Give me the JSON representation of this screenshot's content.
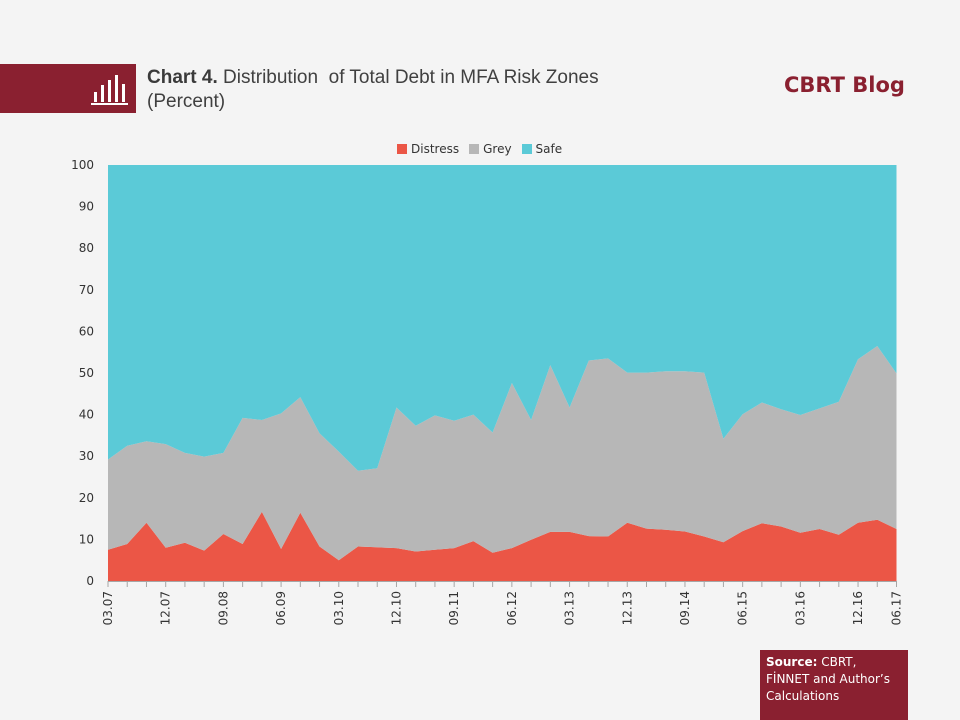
{
  "header": {
    "chart_number": "Chart 4.",
    "title": "Distribution  of Total Debt in MFA Risk Zones",
    "subtitle": "(Percent)",
    "brand": "CBRT Blog",
    "icon": "bar-chart-icon"
  },
  "source": {
    "label": "Source:",
    "text": " CBRT, FİNNET and Author’s Calculations"
  },
  "colors": {
    "brand": "#8a2030",
    "distress": "#eb5646",
    "grey": "#b7b7b7",
    "safe": "#5bcad7"
  },
  "chart_data": {
    "type": "area",
    "stacked": true,
    "title": "Distribution of Total Debt in MFA Risk Zones (Percent)",
    "xlabel": "",
    "ylabel": "",
    "ylim": [
      0,
      100
    ],
    "yticks": [
      "0",
      "10",
      "20",
      "30",
      "40",
      "50",
      "60",
      "70",
      "80",
      "90",
      "100"
    ],
    "xtick_labels": [
      "03.07",
      "12.07",
      "09.08",
      "06.09",
      "03.10",
      "12.10",
      "09.11",
      "06.12",
      "03.13",
      "12.13",
      "09.14",
      "06.15",
      "03.16",
      "12.16",
      "06.17"
    ],
    "xtick_label_indices": [
      0,
      3,
      6,
      9,
      12,
      15,
      18,
      21,
      24,
      27,
      30,
      33,
      36,
      39,
      41
    ],
    "legend": {
      "position": "top",
      "entries": [
        "Distress",
        "Grey",
        "Safe"
      ]
    },
    "x_count": 42,
    "series": [
      {
        "name": "Distress",
        "values": [
          7.5,
          8.9,
          14.0,
          8.0,
          9.2,
          7.3,
          11.3,
          8.9,
          16.6,
          7.7,
          16.4,
          8.3,
          5.0,
          8.3,
          8.1,
          7.9,
          7.1,
          7.5,
          7.9,
          9.6,
          6.8,
          7.9,
          9.9,
          11.8,
          11.8,
          10.8,
          10.7,
          14.0,
          12.6,
          12.3,
          11.9,
          10.7,
          9.3,
          12.0,
          13.9,
          13.1,
          11.6,
          12.5,
          11.1,
          14.0,
          14.7,
          12.5
        ]
      },
      {
        "name": "Grey",
        "values": [
          21.7,
          23.6,
          19.6,
          24.9,
          21.6,
          22.6,
          19.5,
          30.3,
          22.1,
          32.6,
          27.8,
          27.2,
          26.1,
          18.2,
          19.0,
          33.8,
          30.2,
          32.3,
          30.6,
          30.4,
          28.9,
          39.7,
          28.8,
          40.1,
          29.9,
          42.2,
          42.8,
          36.1,
          37.5,
          38.1,
          38.5,
          39.4,
          24.9,
          28.1,
          29.0,
          28.2,
          28.3,
          29.0,
          32.0,
          39.3,
          41.8,
          37.4
        ]
      },
      {
        "name": "Safe",
        "values": [
          70.8,
          67.5,
          66.4,
          67.1,
          69.2,
          70.1,
          69.2,
          60.8,
          61.3,
          59.7,
          55.8,
          64.5,
          68.9,
          73.5,
          72.9,
          58.3,
          62.7,
          60.2,
          61.5,
          60.0,
          64.3,
          52.4,
          61.3,
          48.1,
          58.3,
          47.0,
          46.5,
          49.9,
          49.9,
          49.6,
          49.6,
          49.9,
          65.8,
          59.9,
          57.1,
          58.7,
          60.1,
          58.5,
          56.9,
          46.7,
          43.5,
          50.1
        ]
      }
    ]
  }
}
